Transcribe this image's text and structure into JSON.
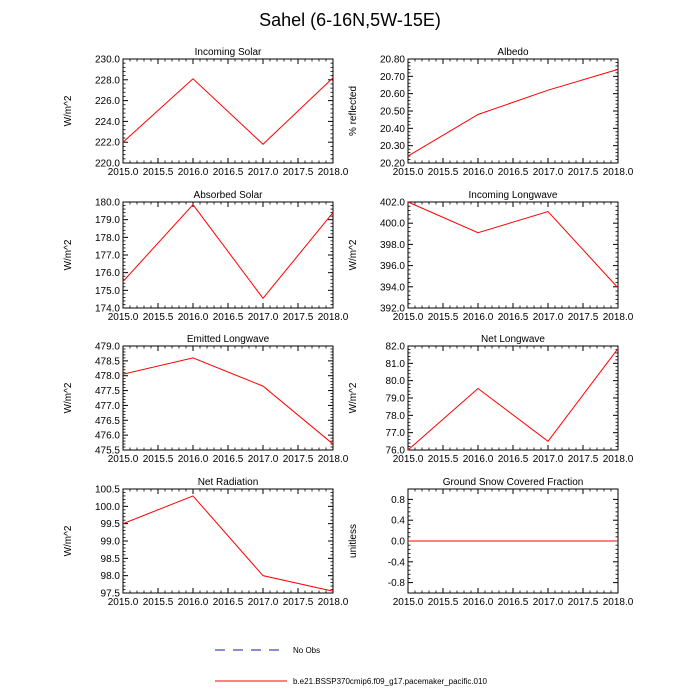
{
  "title": "Sahel (6-16N,5W-15E)",
  "legend": {
    "obs_label": "No Obs",
    "model_label": "b.e21.BSSP370cmip6.f09_g17.pacemaker_pacific.010",
    "obs_color": "#1a1a9c",
    "model_color": "#ff0000"
  },
  "chart_data": [
    {
      "type": "line",
      "title": "Incoming Solar",
      "ylabel": "W/m^2",
      "x": [
        2015,
        2016,
        2017,
        2018
      ],
      "values": [
        222.0,
        228.1,
        221.8,
        228.2
      ],
      "xlim": [
        2015,
        2018
      ],
      "ylim": [
        220,
        230
      ],
      "xticks": [
        "2015.0",
        "2015.5",
        "2016.0",
        "2016.5",
        "2017.0",
        "2017.5",
        "2018.0"
      ],
      "yticks": [
        "220.0",
        "222.0",
        "224.0",
        "226.0",
        "228.0",
        "230.0"
      ]
    },
    {
      "type": "line",
      "title": "Albedo",
      "ylabel": "% reflected",
      "x": [
        2015,
        2016,
        2017,
        2018
      ],
      "values": [
        20.24,
        20.48,
        20.62,
        20.74
      ],
      "xlim": [
        2015,
        2018
      ],
      "ylim": [
        20.2,
        20.8
      ],
      "xticks": [
        "2015.0",
        "2015.5",
        "2016.0",
        "2016.5",
        "2017.0",
        "2017.5",
        "2018.0"
      ],
      "yticks": [
        "20.20",
        "20.30",
        "20.40",
        "20.50",
        "20.60",
        "20.70",
        "20.80"
      ]
    },
    {
      "type": "line",
      "title": "Absorbed Solar",
      "ylabel": "W/m^2",
      "x": [
        2015,
        2016,
        2017,
        2018
      ],
      "values": [
        175.5,
        179.85,
        174.55,
        179.4
      ],
      "xlim": [
        2015,
        2018
      ],
      "ylim": [
        174,
        180
      ],
      "xticks": [
        "2015.0",
        "2015.5",
        "2016.0",
        "2016.5",
        "2017.0",
        "2017.5",
        "2018.0"
      ],
      "yticks": [
        "174.0",
        "175.0",
        "176.0",
        "177.0",
        "178.0",
        "179.0",
        "180.0"
      ]
    },
    {
      "type": "line",
      "title": "Incoming Longwave",
      "ylabel": "W/m^2",
      "x": [
        2015,
        2016,
        2017,
        2018
      ],
      "values": [
        402.0,
        399.1,
        401.1,
        393.9
      ],
      "xlim": [
        2015,
        2018
      ],
      "ylim": [
        392,
        402
      ],
      "xticks": [
        "2015.0",
        "2015.5",
        "2016.0",
        "2016.5",
        "2017.0",
        "2017.5",
        "2018.0"
      ],
      "yticks": [
        "392.0",
        "394.0",
        "396.0",
        "398.0",
        "400.0",
        "402.0"
      ]
    },
    {
      "type": "line",
      "title": "Emitted Longwave",
      "ylabel": "W/m^2",
      "x": [
        2015,
        2016,
        2017,
        2018
      ],
      "values": [
        478.05,
        478.6,
        477.65,
        475.7
      ],
      "xlim": [
        2015,
        2018
      ],
      "ylim": [
        475.5,
        479
      ],
      "xticks": [
        "2015.0",
        "2015.5",
        "2016.0",
        "2016.5",
        "2017.0",
        "2017.5",
        "2018.0"
      ],
      "yticks": [
        "475.5",
        "476.0",
        "476.5",
        "477.0",
        "477.5",
        "478.0",
        "478.5",
        "479.0"
      ]
    },
    {
      "type": "line",
      "title": "Net Longwave",
      "ylabel": "W/m^2",
      "x": [
        2015,
        2016,
        2017,
        2018
      ],
      "values": [
        76.0,
        79.55,
        76.5,
        81.85
      ],
      "xlim": [
        2015,
        2018
      ],
      "ylim": [
        76,
        82
      ],
      "xticks": [
        "2015.0",
        "2015.5",
        "2016.0",
        "2016.5",
        "2017.0",
        "2017.5",
        "2018.0"
      ],
      "yticks": [
        "76.0",
        "77.0",
        "78.0",
        "79.0",
        "80.0",
        "81.0",
        "82.0"
      ]
    },
    {
      "type": "line",
      "title": "Net Radiation",
      "ylabel": "W/m^2",
      "x": [
        2015,
        2016,
        2017,
        2018
      ],
      "values": [
        99.5,
        100.3,
        98.0,
        97.55
      ],
      "xlim": [
        2015,
        2018
      ],
      "ylim": [
        97.5,
        100.5
      ],
      "xticks": [
        "2015.0",
        "2015.5",
        "2016.0",
        "2016.5",
        "2017.0",
        "2017.5",
        "2018.0"
      ],
      "yticks": [
        "97.5",
        "98.0",
        "98.5",
        "99.0",
        "99.5",
        "100.0",
        "100.5"
      ]
    },
    {
      "type": "line",
      "title": "Ground Snow Covered Fraction",
      "ylabel": "unitless",
      "x": [
        2015,
        2016,
        2017,
        2018
      ],
      "values": [
        0.0,
        0.0,
        0.0,
        0.0
      ],
      "xlim": [
        2015,
        2018
      ],
      "ylim": [
        -1,
        1
      ],
      "xticks": [
        "2015.0",
        "2015.5",
        "2016.0",
        "2016.5",
        "2017.0",
        "2017.5",
        "2018.0"
      ],
      "yticks": [
        "-0.8",
        "-0.4",
        "0.0",
        "0.4",
        "0.8"
      ]
    }
  ]
}
